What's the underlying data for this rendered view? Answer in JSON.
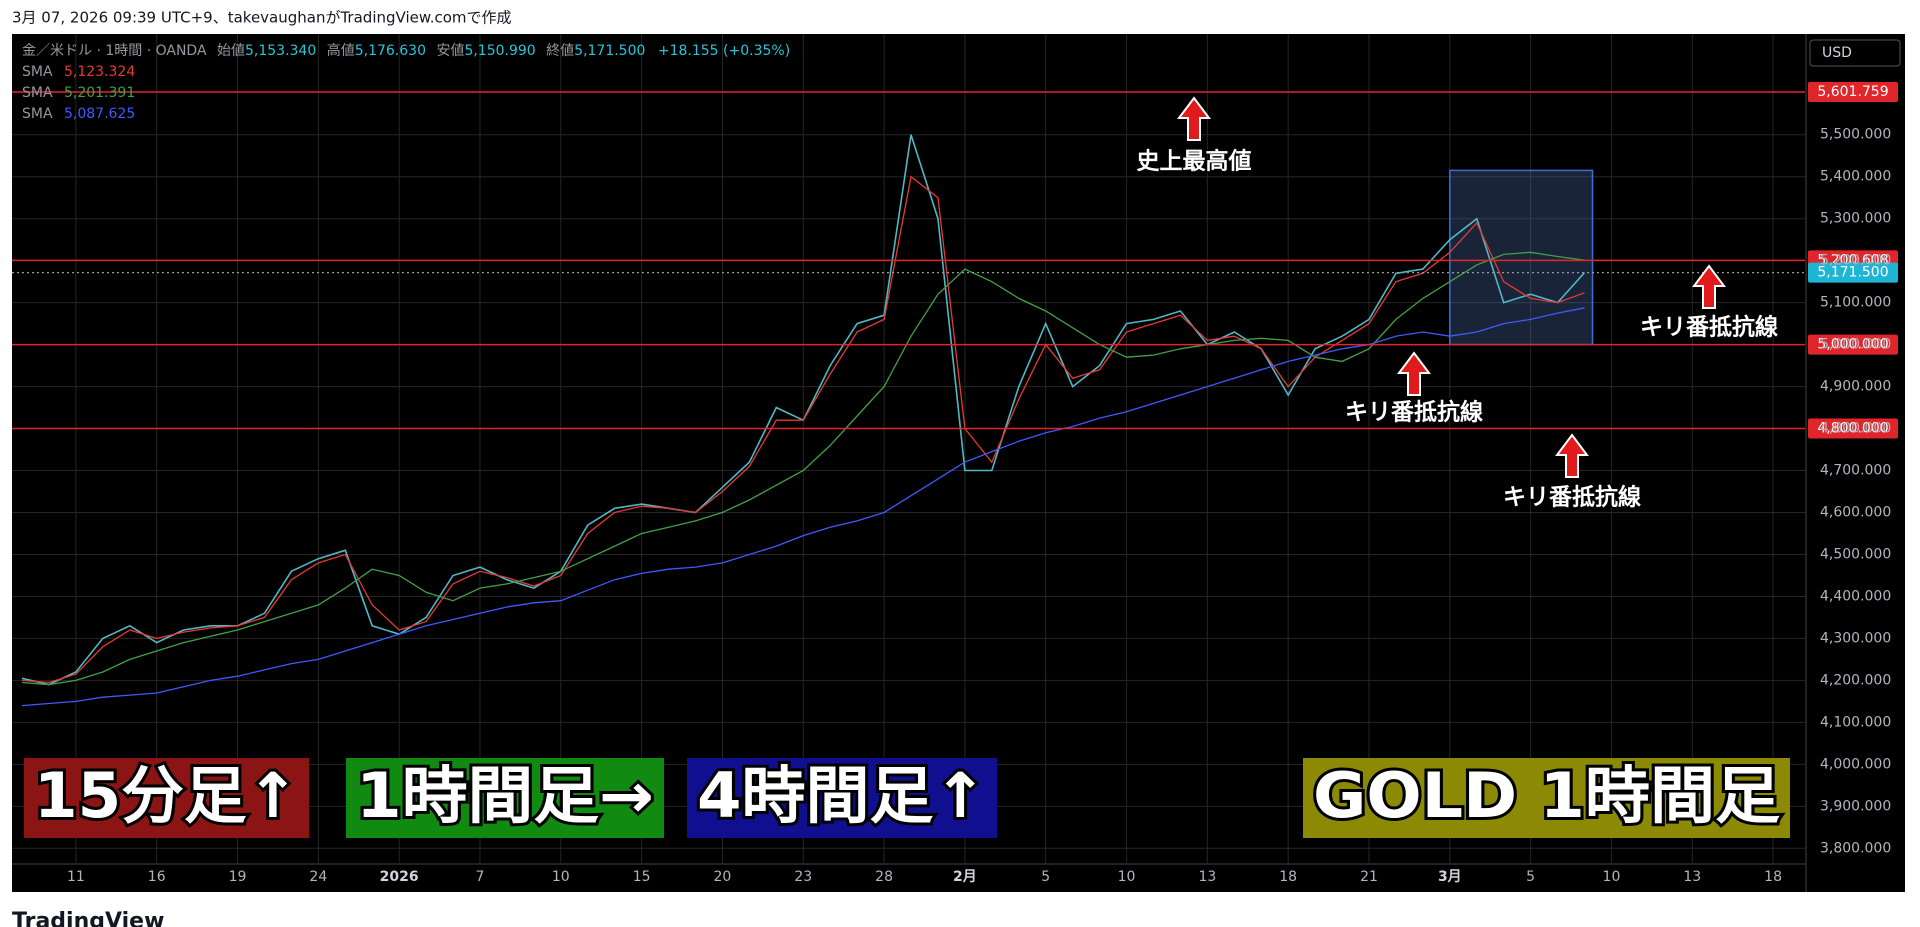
{
  "header": "3月 07, 2026 09:39 UTC+9、takevaughanがTradingView.comで作成",
  "footer": "TradingView",
  "banners": [
    "15分足↑",
    "1時間足→",
    "4時間足↑",
    "GOLD 1時間足"
  ],
  "chart_data": {
    "type": "line",
    "symbol": "金／米ドル · 1時間 · OANDA",
    "ohlc": [
      {
        "name": "始値",
        "text": "5,153.340"
      },
      {
        "name": "高値",
        "text": "5,176.630"
      },
      {
        "name": "安値",
        "text": "5,150.990"
      },
      {
        "name": "終値",
        "text": "5,171.500"
      }
    ],
    "change": "+18.155 (+0.35%)",
    "currency": "USD",
    "categories": [
      null,
      null,
      "11",
      null,
      null,
      "16",
      null,
      null,
      "19",
      null,
      null,
      "24",
      null,
      null,
      "2026",
      null,
      null,
      "7",
      null,
      null,
      "10",
      null,
      null,
      "15",
      null,
      null,
      "20",
      null,
      null,
      "23",
      null,
      null,
      "28",
      null,
      null,
      "2月",
      null,
      null,
      "5",
      null,
      null,
      "10",
      null,
      null,
      "13",
      null,
      null,
      "18",
      null,
      null,
      "21",
      null,
      null,
      "3月",
      null,
      null,
      "5",
      null,
      null,
      "10",
      null,
      null,
      "13",
      null,
      null,
      "18"
    ],
    "series": [
      {
        "color": "#4fb8c6",
        "values": [
          4205,
          4190,
          4220,
          4300,
          4330,
          4290,
          4320,
          4330,
          4330,
          4360,
          4460,
          4490,
          4510,
          4330,
          4310,
          4350,
          4450,
          4470,
          4440,
          4420,
          4460,
          4570,
          4610,
          4620,
          4610,
          4600,
          4660,
          4720,
          4850,
          4820,
          4950,
          5050,
          5070,
          5500,
          5300,
          4700,
          4700,
          4900,
          5050,
          4900,
          4950,
          5050,
          5060,
          5080,
          5000,
          5030,
          4990,
          4880,
          4990,
          5020,
          5060,
          5170,
          5180,
          5250,
          5300,
          5100,
          5120,
          5100,
          5171.5,
          null,
          null,
          null,
          null,
          null,
          null,
          null
        ]
      },
      {
        "name": "SMA",
        "legend_value": "5,123.324",
        "color": "#e53935",
        "values": [
          4200,
          4195,
          4215,
          4280,
          4320,
          4300,
          4315,
          4325,
          4330,
          4350,
          4440,
          4480,
          4500,
          4380,
          4320,
          4340,
          4430,
          4460,
          4445,
          4425,
          4450,
          4550,
          4600,
          4615,
          4610,
          4600,
          4650,
          4710,
          4820,
          4820,
          4930,
          5030,
          5060,
          5400,
          5350,
          4800,
          4720,
          4870,
          5000,
          4920,
          4940,
          5030,
          5050,
          5070,
          5010,
          5020,
          4990,
          4900,
          4970,
          5010,
          5050,
          5150,
          5170,
          5220,
          5290,
          5150,
          5110,
          5100,
          5123.324,
          null,
          null,
          null,
          null,
          null,
          null,
          null
        ]
      },
      {
        "name": "SMA",
        "legend_value": "5,201.391",
        "color": "#43a047",
        "values": [
          4195,
          4190,
          4200,
          4220,
          4250,
          4270,
          4290,
          4305,
          4320,
          4340,
          4360,
          4380,
          4420,
          4465,
          4450,
          4410,
          4390,
          4420,
          4430,
          4445,
          4460,
          4490,
          4520,
          4550,
          4565,
          4580,
          4600,
          4630,
          4665,
          4700,
          4760,
          4830,
          4900,
          5020,
          5120,
          5180,
          5150,
          5110,
          5080,
          5040,
          5000,
          4970,
          4975,
          4990,
          5000,
          5010,
          5015,
          5010,
          4970,
          4960,
          4990,
          5060,
          5110,
          5150,
          5190,
          5215,
          5220,
          5210,
          5201.391,
          null,
          null,
          null,
          null,
          null,
          null,
          null
        ]
      },
      {
        "name": "SMA",
        "legend_value": "5,087.625",
        "color": "#3d5afe",
        "values": [
          4140,
          4145,
          4150,
          4160,
          4165,
          4170,
          4185,
          4200,
          4210,
          4225,
          4240,
          4250,
          4270,
          4290,
          4310,
          4330,
          4345,
          4360,
          4375,
          4385,
          4390,
          4415,
          4440,
          4455,
          4465,
          4470,
          4480,
          4500,
          4520,
          4545,
          4565,
          4580,
          4600,
          4640,
          4680,
          4720,
          4745,
          4770,
          4790,
          4805,
          4825,
          4840,
          4860,
          4880,
          4900,
          4920,
          4940,
          4960,
          4975,
          4990,
          5000,
          5020,
          5030,
          5020,
          5030,
          5050,
          5060,
          5075,
          5087.625,
          null,
          null,
          null,
          null,
          null,
          null,
          null
        ]
      }
    ],
    "ylim": [
      3765,
      5740
    ],
    "yticks": [
      {
        "value": 3800,
        "label": "3,800.000"
      },
      {
        "value": 3900,
        "label": "3,900.000"
      },
      {
        "value": 4000,
        "label": "4,000.000"
      },
      {
        "value": 4100,
        "label": "4,100.000"
      },
      {
        "value": 4200,
        "label": "4,200.000"
      },
      {
        "value": 4300,
        "label": "4,300.000"
      },
      {
        "value": 4400,
        "label": "4,400.000"
      },
      {
        "value": 4500,
        "label": "4,500.000"
      },
      {
        "value": 4600,
        "label": "4,600.000"
      },
      {
        "value": 4700,
        "label": "4,700.000"
      },
      {
        "value": 4800,
        "label": "4,800.000"
      },
      {
        "value": 4900,
        "label": "4,900.000"
      },
      {
        "value": 5000,
        "label": "5,000.000"
      },
      {
        "value": 5100,
        "label": "5,100.000"
      },
      {
        "value": 5200,
        "label": "5,200.000"
      },
      {
        "value": 5300,
        "label": "5,300.000"
      },
      {
        "value": 5400,
        "label": "5,400.000"
      },
      {
        "value": 5500,
        "label": "5,500.000"
      }
    ],
    "grid": true,
    "hlines": [
      {
        "value": 5601.759,
        "label": "5,601.759",
        "color": "#e0252b",
        "style": "solid"
      },
      {
        "value": 5200.608,
        "label": "5,200.608",
        "color": "#e0252b",
        "style": "solid"
      },
      {
        "value": 5171.5,
        "label": "5,171.500",
        "color": "#1fb5d4",
        "style": "dotted"
      },
      {
        "value": 5000,
        "label": "5,000.000",
        "color": "#e0252b",
        "style": "solid"
      },
      {
        "value": 4800,
        "label": "4,800.000",
        "color": "#e0252b",
        "style": "solid"
      }
    ],
    "box": {
      "ylim": [
        5000,
        5415
      ],
      "from": "3月"
    },
    "annotations": [
      {
        "text": "史上最高値"
      },
      {
        "text": "キリ番抵抗線"
      },
      {
        "text": "キリ番抵抗線"
      },
      {
        "text": "キリ番抵抗線"
      }
    ]
  }
}
